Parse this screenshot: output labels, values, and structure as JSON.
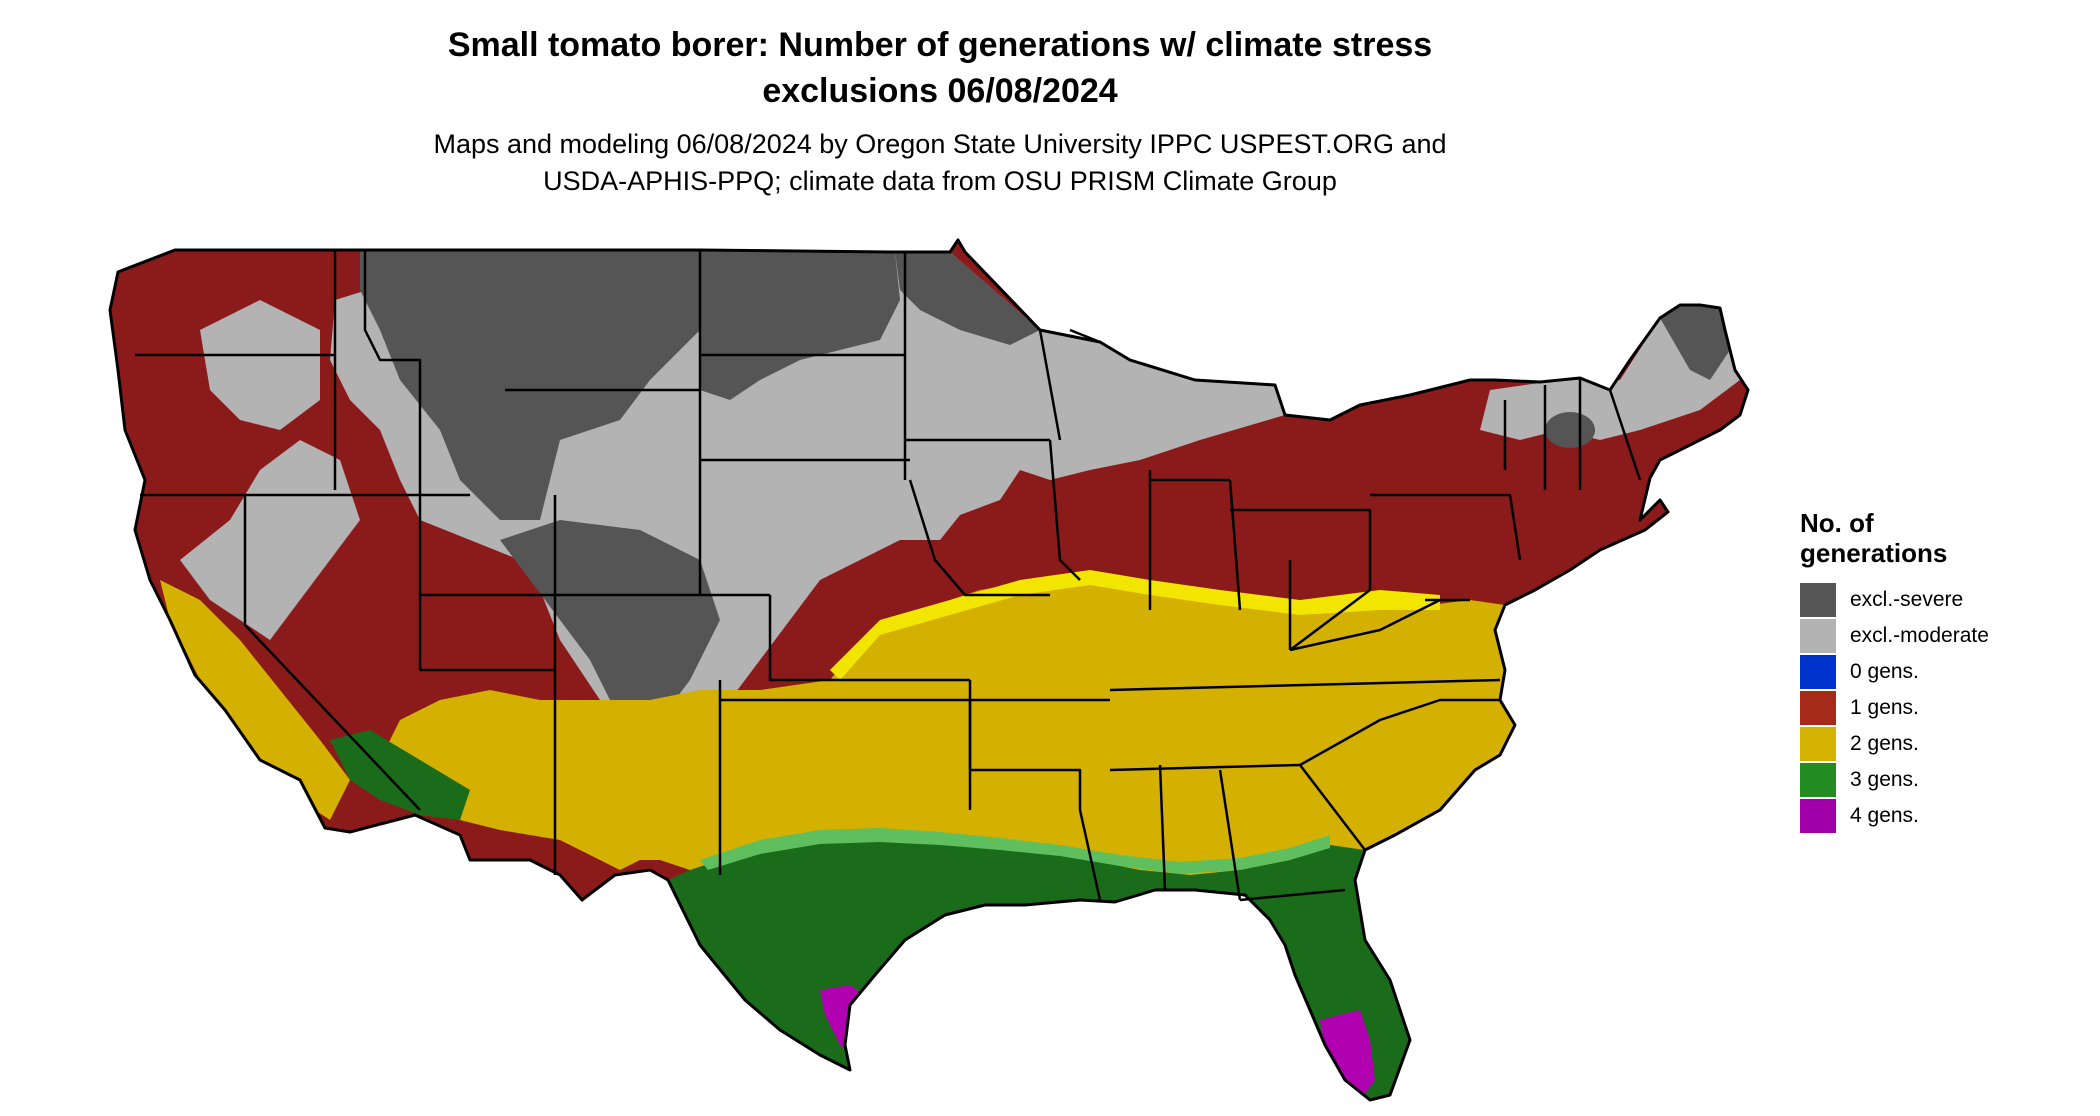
{
  "title": {
    "line1": "Small tomato borer: Number of generations w/ climate stress",
    "line2": "exclusions 06/08/2024"
  },
  "subtitle": {
    "line1": "Maps and modeling 06/08/2024 by Oregon State University IPPC USPEST.ORG and",
    "line2": "USDA-APHIS-PPQ; climate data from OSU PRISM Climate Group"
  },
  "legend": {
    "title_line1": "No. of",
    "title_line2": "generations",
    "items": [
      {
        "label": "excl.-severe",
        "color": "#555555"
      },
      {
        "label": "excl.-moderate",
        "color": "#b3b3b3"
      },
      {
        "label": "0 gens.",
        "color": "#0033cc"
      },
      {
        "label": "1 gens.",
        "color": "#a52a1a"
      },
      {
        "label": "2 gens.",
        "color": "#d4b300"
      },
      {
        "label": "3 gens.",
        "color": "#228b22"
      },
      {
        "label": "4 gens.",
        "color": "#a000a8"
      }
    ]
  },
  "map_colors": {
    "severe": "#555555",
    "moderate": "#b3b3b3",
    "one_gen": "#8b1a1a",
    "two_gen": "#d4b000",
    "two_gen_light": "#f2e600",
    "three_gen": "#1a6b1a",
    "three_gen_light": "#5fbf5f",
    "four_gen": "#b000b0",
    "border": "#000000"
  }
}
